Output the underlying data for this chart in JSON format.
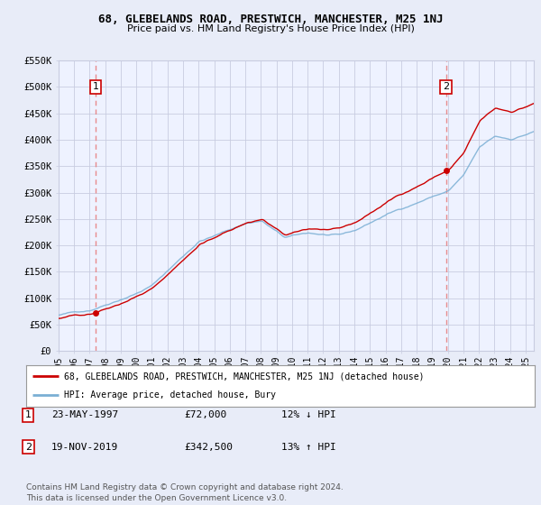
{
  "title1": "68, GLEBELANDS ROAD, PRESTWICH, MANCHESTER, M25 1NJ",
  "title2": "Price paid vs. HM Land Registry's House Price Index (HPI)",
  "ylim": [
    0,
    550000
  ],
  "xlim_start": 1995.0,
  "xlim_end": 2025.5,
  "yticks": [
    0,
    50000,
    100000,
    150000,
    200000,
    250000,
    300000,
    350000,
    400000,
    450000,
    500000,
    550000
  ],
  "ytick_labels": [
    "£0",
    "£50K",
    "£100K",
    "£150K",
    "£200K",
    "£250K",
    "£300K",
    "£350K",
    "£400K",
    "£450K",
    "£500K",
    "£550K"
  ],
  "xticks": [
    1995,
    1996,
    1997,
    1998,
    1999,
    2000,
    2001,
    2002,
    2003,
    2004,
    2005,
    2006,
    2007,
    2008,
    2009,
    2010,
    2011,
    2012,
    2013,
    2014,
    2015,
    2016,
    2017,
    2018,
    2019,
    2020,
    2021,
    2022,
    2023,
    2024,
    2025
  ],
  "transaction1_x": 1997.38,
  "transaction1_y": 72000,
  "transaction1_label": "1",
  "transaction2_x": 2019.89,
  "transaction2_y": 342500,
  "transaction2_label": "2",
  "red_line_color": "#cc0000",
  "blue_line_color": "#7aafd4",
  "vline_color": "#e88080",
  "legend_red_label": "68, GLEBELANDS ROAD, PRESTWICH, MANCHESTER, M25 1NJ (detached house)",
  "legend_blue_label": "HPI: Average price, detached house, Bury",
  "ann1_date": "23-MAY-1997",
  "ann1_price": "£72,000",
  "ann1_hpi": "12% ↓ HPI",
  "ann2_date": "19-NOV-2019",
  "ann2_price": "£342,500",
  "ann2_hpi": "13% ↑ HPI",
  "footer": "Contains HM Land Registry data © Crown copyright and database right 2024.\nThis data is licensed under the Open Government Licence v3.0.",
  "bg_color": "#e8ecf8",
  "plot_bg": "#eef2ff",
  "grid_color": "#c8cce0"
}
